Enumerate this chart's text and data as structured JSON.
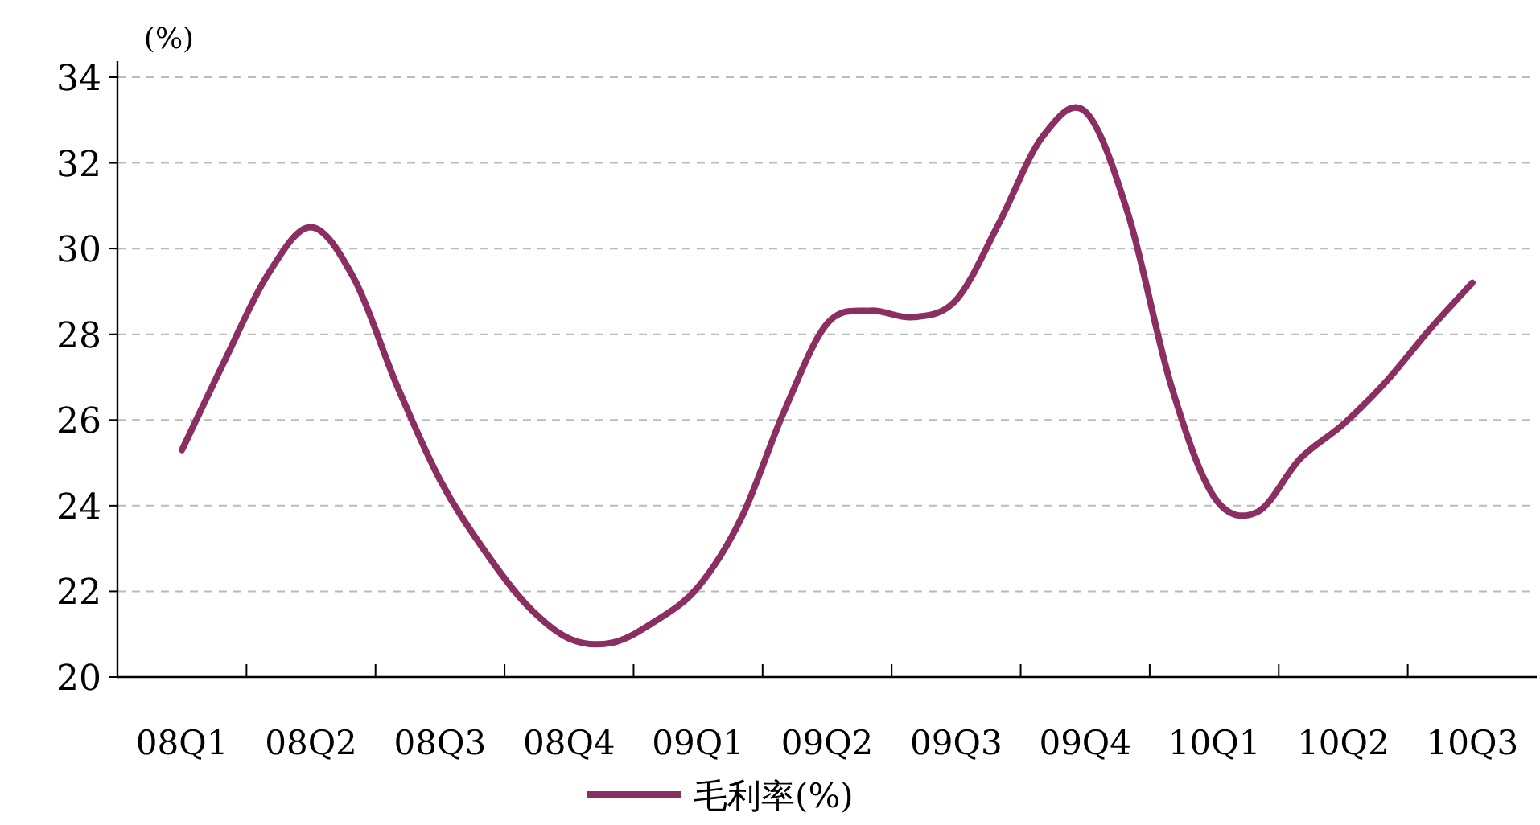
{
  "chart_data": {
    "type": "line",
    "ylabel": "(%)",
    "legend": "bottom",
    "grid": "y",
    "marker": "none",
    "line_style": "solid",
    "categories": [
      "08Q1",
      null,
      null,
      "08Q2",
      null,
      null,
      "08Q3",
      null,
      null,
      "08Q4",
      null,
      null,
      "09Q1",
      null,
      null,
      "09Q2",
      null,
      null,
      "09Q3",
      null,
      null,
      "09Q4",
      null,
      null,
      "10Q1",
      null,
      null,
      "10Q2",
      null,
      null,
      "10Q3"
    ],
    "ylim": [
      20,
      34
    ],
    "yticks": [
      20,
      22,
      24,
      26,
      28,
      30,
      32,
      34
    ],
    "series": [
      {
        "name": "毛利率(%)",
        "color": "#8b2e62",
        "values": [
          25.3,
          27.4,
          29.4,
          30.5,
          29.3,
          26.8,
          24.6,
          23.0,
          21.7,
          20.9,
          20.8,
          21.3,
          22.1,
          23.7,
          26.2,
          28.25,
          28.55,
          28.4,
          28.8,
          30.6,
          32.6,
          33.2,
          30.8,
          26.8,
          24.2,
          23.85,
          25.1,
          25.9,
          26.9,
          28.1,
          29.2
        ]
      }
    ]
  }
}
